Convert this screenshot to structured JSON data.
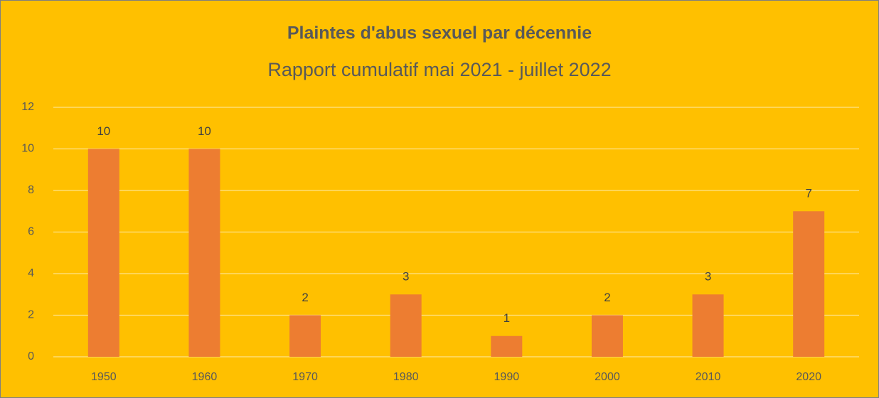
{
  "chart_data": {
    "type": "bar",
    "title": "Plaintes d'abus sexuel par décennie",
    "subtitle": "Rapport cumulatif mai 2021 - juillet 2022",
    "categories": [
      "1950",
      "1960",
      "1970",
      "1980",
      "1990",
      "2000",
      "2010",
      "2020"
    ],
    "values": [
      10,
      10,
      2,
      3,
      1,
      2,
      3,
      7
    ],
    "color": "#ed7d31",
    "ylim": [
      0,
      12
    ],
    "yticks": [
      0,
      2,
      4,
      6,
      8,
      10,
      12
    ],
    "grid": true
  }
}
